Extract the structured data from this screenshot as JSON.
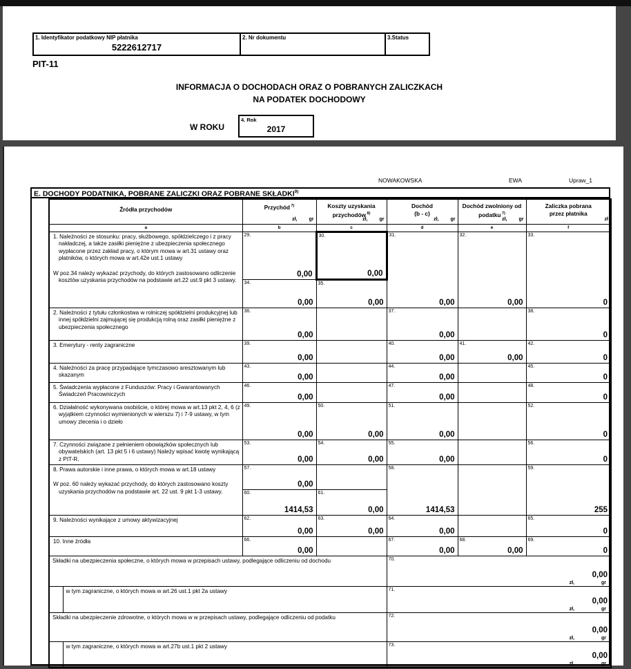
{
  "header": {
    "nip_label": "1. Identyfikator podatkowy NIP płatnika",
    "nip_value": "5222612717",
    "doc_label": "2. Nr dokumentu",
    "status_label": "3.Status",
    "form_id": "PIT-11",
    "title_line1": "INFORMACJA O DOCHODACH ORAZ O POBRANYCH ZALICZKACH",
    "title_line2": "NA PODATEK DOCHODOWY",
    "w_roku_label": "W ROKU",
    "rok_box_label": "4. Rok",
    "rok_value": "2017"
  },
  "taxpayer": {
    "surname": "NOWAKOWSKA",
    "first_name": "EWA",
    "upraw": "Upraw_1"
  },
  "section_e": {
    "title": "E. DOCHODY PODATNIKA, POBRANE ZALICZKI ORAZ POBRANE SKŁADKI",
    "title_sup": "9)",
    "columns": [
      {
        "lines": [
          "Źródła przychodów"
        ],
        "sup": "",
        "unit": ""
      },
      {
        "lines": [
          "Przychód"
        ],
        "sup": "7)",
        "unit": "zlgr"
      },
      {
        "lines": [
          "Koszty uzyskania",
          "przychodów"
        ],
        "sup": "8)",
        "unit": "zlgr"
      },
      {
        "lines": [
          "Dochód",
          "(b - c)"
        ],
        "sup": "",
        "unit": "zlgr"
      },
      {
        "lines": [
          "Dochód zwolniony od",
          "podatku"
        ],
        "sup": "7)",
        "unit": "zlgr"
      },
      {
        "lines": [
          "Zaliczka pobrana",
          "przez płatnika"
        ],
        "sup": "",
        "unit": "zl"
      }
    ],
    "unit_zl": "zł,",
    "unit_gr": "gr",
    "unit_zl_only": "zł",
    "letters": [
      "a",
      "b",
      "c",
      "d",
      "e",
      "f"
    ],
    "rows": [
      {
        "label": {
          "rowspan": 2,
          "paras": [
            "1. Należności ze stosunku: pracy, służbowego, spółdzielczego i z pracy nakładczej, a także zasiłki pieniężne z ubezpieczenia społecznego wypłacone przez zakład pracy, o którym mowa w art.31 ustawy oraz płatników, o których mowa w art.42e ust.1 ustawy",
            "W poz.34 należy wykazać przychody, do których zastosowano odliczenie kosztów uzyskania przychodów na podstawie art.22 ust.9 pkt 3 ustawy."
          ]
        },
        "cells": [
          {
            "num": "29.",
            "value": "0,00"
          },
          {
            "num": "30.",
            "value": "0,00",
            "thick": true
          },
          {
            "num": "31.",
            "value": "0,00",
            "rowspan": 2
          },
          {
            "num": "32.",
            "value": "0,00",
            "rowspan": 2
          },
          {
            "num": "33.",
            "value": "0",
            "rowspan": 2
          }
        ]
      },
      {
        "cells": [
          {
            "num": "34.",
            "value": "0,00"
          },
          {
            "num": "35.",
            "value": "0,00"
          }
        ]
      },
      {
        "label": {
          "paras": [
            "2. Należności z tytułu członkostwa w rolniczej spółdzielni produkcyjnej lub innej spółdzielni zajmującej się produkcją rolną oraz zasiłki pieniężne z ubezpieczenia społecznego"
          ]
        },
        "cells": [
          {
            "num": "36.",
            "value": "0,00"
          },
          {},
          {
            "num": "37.",
            "value": "0,00"
          },
          {},
          {
            "num": "38.",
            "value": "0"
          }
        ]
      },
      {
        "label": {
          "paras": [
            "3. Emerytury - renty zagraniczne"
          ]
        },
        "cells": [
          {
            "num": "39.",
            "value": "0,00"
          },
          {},
          {
            "num": "40.",
            "value": "0,00"
          },
          {
            "num": "41.",
            "value": "0,00"
          },
          {
            "num": "42.",
            "value": "0"
          }
        ]
      },
      {
        "label": {
          "paras": [
            "4. Należności za pracę przypadające tymczasowo aresztowanym lub skazanym"
          ]
        },
        "cells": [
          {
            "num": "43.",
            "value": "0,00"
          },
          {},
          {
            "num": "44.",
            "value": "0,00"
          },
          {},
          {
            "num": "45.",
            "value": "0"
          }
        ]
      },
      {
        "label": {
          "paras": [
            "5. Świadczenia wypłacone z Funduszów: Pracy i Gwarantowanych Świadczeń Pracowniczych"
          ]
        },
        "cells": [
          {
            "num": "46.",
            "value": "0,00"
          },
          {},
          {
            "num": "47.",
            "value": "0,00"
          },
          {},
          {
            "num": "48.",
            "value": "0"
          }
        ]
      },
      {
        "label": {
          "paras": [
            "6. Działalność wykonywana osobiście, o której mowa w art.13 pkt 2, 4, 6 (z wyjątkiem czynności wymienionych w wierszu 7) i 7-9 ustawy, w tym umowy zlecenia i o dzieło"
          ]
        },
        "cells": [
          {
            "num": "49.",
            "value": "0,00"
          },
          {
            "num": "50.",
            "value": "0,00"
          },
          {
            "num": "51.",
            "value": "0,00"
          },
          {},
          {
            "num": "52.",
            "value": "0"
          }
        ]
      },
      {
        "label": {
          "paras": [
            "7. Czynności związane z pełnieniem obowiązków społecznych lub obywatelskich (art. 13 pkt 5 i 6 ustawy) Należy wpisać kwotę wynikającą z PIT-R."
          ]
        },
        "cells": [
          {
            "num": "53.",
            "value": "0,00"
          },
          {
            "num": "54.",
            "value": "0,00"
          },
          {
            "num": "55.",
            "value": "0,00"
          },
          {},
          {
            "num": "56.",
            "value": "0"
          }
        ]
      },
      {
        "label": {
          "rowspan": 2,
          "paras": [
            "8. Prawa autorskie i inne prawa, o których mowa w art.18 ustawy",
            "W poz. 60 należy wykazać przychody, do których zastosowano koszty uzyskania przychodów na podstawie art. 22 ust. 9 pkt 1-3 ustawy."
          ]
        },
        "cells": [
          {
            "num": "57.",
            "value": "0,00"
          },
          {},
          {
            "num": "58.",
            "value": "1414,53",
            "rowspan": 2
          },
          {
            "rowspan": 2
          },
          {
            "num": "59.",
            "value": "255",
            "rowspan": 2
          }
        ]
      },
      {
        "cells": [
          {
            "num": "60.",
            "value": "1414,53"
          },
          {
            "num": "61.",
            "value": "0,00"
          }
        ]
      },
      {
        "label": {
          "paras": [
            "9. Należności wynikające z umowy aktywizacyjnej"
          ]
        },
        "cells": [
          {
            "num": "62.",
            "value": "0,00"
          },
          {
            "num": "63.",
            "value": "0,00"
          },
          {
            "num": "64.",
            "value": "0,00"
          },
          {},
          {
            "num": "65.",
            "value": "0"
          }
        ]
      },
      {
        "label": {
          "paras": [
            "10. Inne źródła"
          ]
        },
        "cells": [
          {
            "num": "66.",
            "value": "0,00"
          },
          {},
          {
            "num": "67.",
            "value": "0,00"
          },
          {
            "num": "68.",
            "value": "0,00"
          },
          {
            "num": "69.",
            "value": "0"
          }
        ]
      },
      {
        "type": "skladki",
        "indent": false,
        "label": "Składki na ubezpieczenia społeczne, o których mowa w przepisach ustawy, podlegające odliczeniu od dochodu",
        "num": "70.",
        "value": "0,00"
      },
      {
        "type": "skladki",
        "indent": true,
        "label": "w tym zagraniczne, o których mowa w art.26 ust.1 pkt 2a ustawy",
        "num": "71.",
        "value": "0,00"
      },
      {
        "type": "skladki",
        "indent": false,
        "label": "Składki na ubezpieczenie zdrowotne, o których mowa w w przepisach ustawy, podlegające odliczeniu od podatku",
        "num": "72.",
        "value": "0,00"
      },
      {
        "type": "skladki",
        "indent": true,
        "label": "w tym zagraniczne, o których mowa w art.27b ust.1 pkt 2 ustawy",
        "num": "73.",
        "value": "0,00"
      }
    ]
  }
}
